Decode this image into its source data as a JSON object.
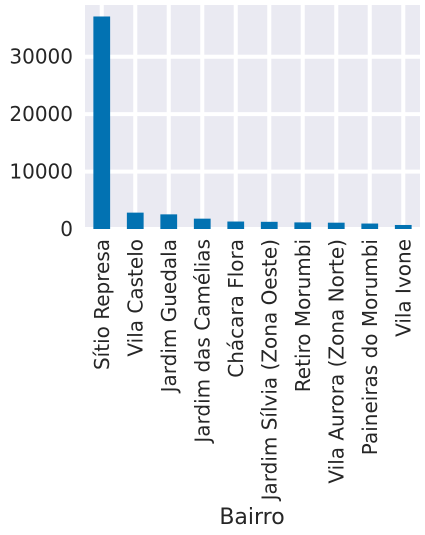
{
  "chart_data": {
    "type": "bar",
    "xlabel": "Bairro",
    "ylabel": "",
    "categories": [
      "Sítio Represa",
      "Vila Castelo",
      "Jardim Guedala",
      "Jardim das Camélias",
      "Chácara Flora",
      "Jardim Sílvia (Zona Oeste)",
      "Retiro Morumbi",
      "Vila Aurora (Zona Norte)",
      "Paineiras do Morumbi",
      "Vila Ivone"
    ],
    "values": [
      37000,
      2850,
      2550,
      1800,
      1300,
      1250,
      1150,
      1100,
      950,
      700
    ],
    "ylim": [
      0,
      39000
    ],
    "yticks": [
      0,
      10000,
      20000,
      30000
    ],
    "grid": true,
    "colors": {
      "bar": "#0272b2",
      "plot_background": "#eaeaf2",
      "grid": "#ffffff",
      "text": "#262626"
    }
  }
}
